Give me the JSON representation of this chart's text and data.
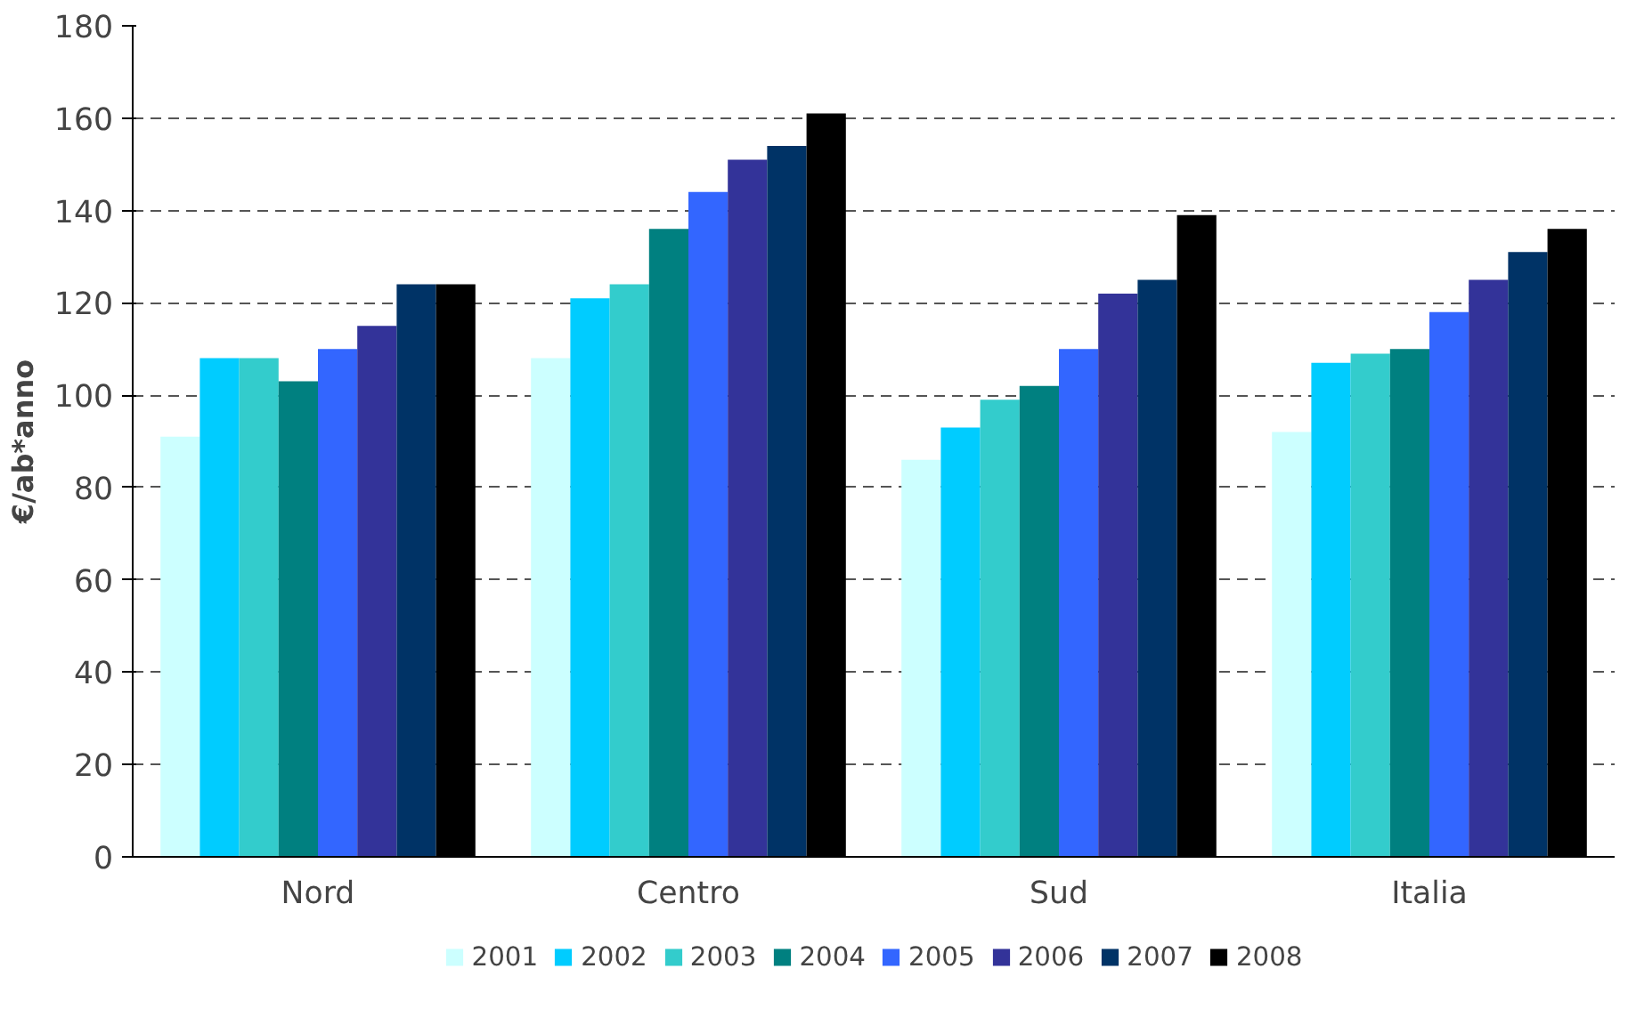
{
  "chart_data": {
    "type": "bar",
    "ylabel": "€/ab*anno",
    "categories": [
      "Nord",
      "Centro",
      "Sud",
      "Italia"
    ],
    "series": [
      {
        "name": "2001",
        "color": "#ccffff",
        "values": [
          91,
          108,
          86,
          92
        ]
      },
      {
        "name": "2002",
        "color": "#00ccff",
        "values": [
          108,
          121,
          93,
          107
        ]
      },
      {
        "name": "2003",
        "color": "#33cccc",
        "values": [
          108,
          124,
          99,
          109
        ]
      },
      {
        "name": "2004",
        "color": "#008080",
        "values": [
          103,
          136,
          102,
          110
        ]
      },
      {
        "name": "2005",
        "color": "#3366ff",
        "values": [
          110,
          144,
          110,
          118
        ]
      },
      {
        "name": "2006",
        "color": "#333399",
        "values": [
          115,
          151,
          122,
          125
        ]
      },
      {
        "name": "2007",
        "color": "#003366",
        "values": [
          124,
          154,
          125,
          131
        ]
      },
      {
        "name": "2008",
        "color": "#000000",
        "values": [
          124,
          161,
          139,
          136
        ]
      }
    ],
    "ylim": [
      0,
      180
    ],
    "yticks": [
      0,
      20,
      40,
      60,
      80,
      100,
      120,
      140,
      160,
      180
    ],
    "grid": "y",
    "legend": "bottom"
  }
}
